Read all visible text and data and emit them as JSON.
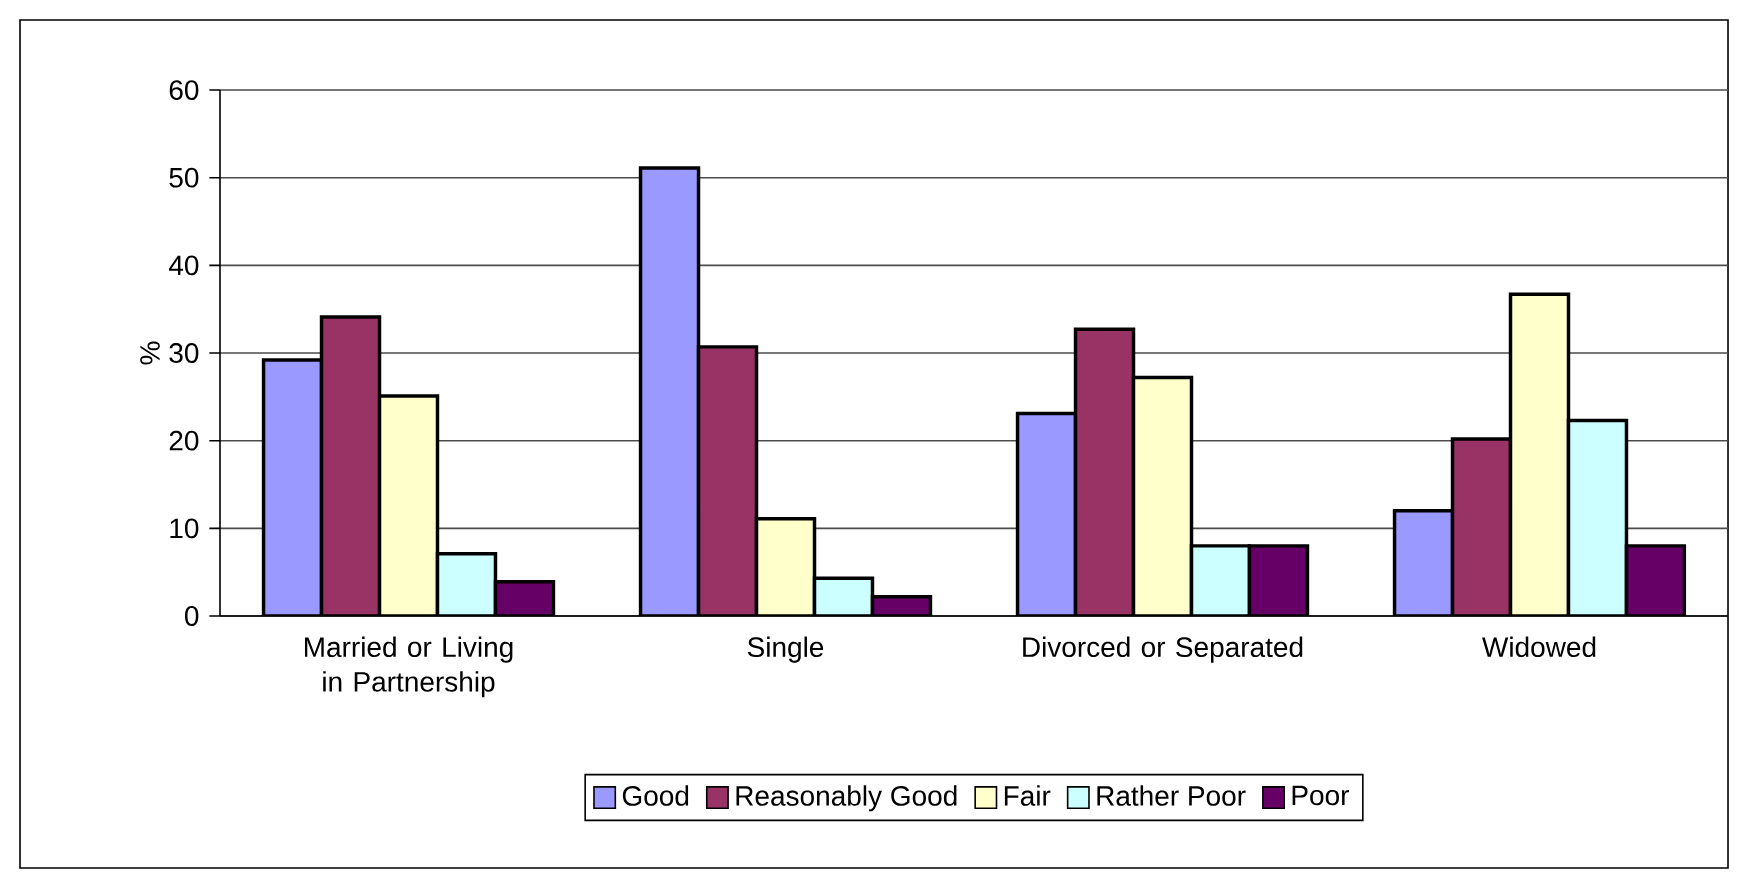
{
  "chart_data": {
    "type": "bar",
    "ylabel": "%",
    "categories": [
      "Married or Living in Partnership",
      "Single",
      "Divorced or Separated",
      "Widowed"
    ],
    "series": [
      {
        "name": "Good",
        "color": "#9999ff",
        "values": [
          29.2,
          51.1,
          23.1,
          12.0
        ]
      },
      {
        "name": "Reasonably Good",
        "color": "#993366",
        "values": [
          34.1,
          30.7,
          32.7,
          20.2
        ]
      },
      {
        "name": "Fair",
        "color": "#ffffcc",
        "values": [
          25.1,
          11.1,
          27.2,
          36.7
        ]
      },
      {
        "name": "Rather Poor",
        "color": "#ccffff",
        "values": [
          7.1,
          4.3,
          8.0,
          22.3
        ]
      },
      {
        "name": "Poor",
        "color": "#660066",
        "values": [
          3.9,
          2.2,
          8.0,
          8.0
        ]
      }
    ],
    "ylim": [
      0,
      60
    ],
    "yticks": [
      0,
      10,
      20,
      30,
      40,
      50,
      60
    ],
    "grid": "y",
    "legend": "bottom"
  }
}
